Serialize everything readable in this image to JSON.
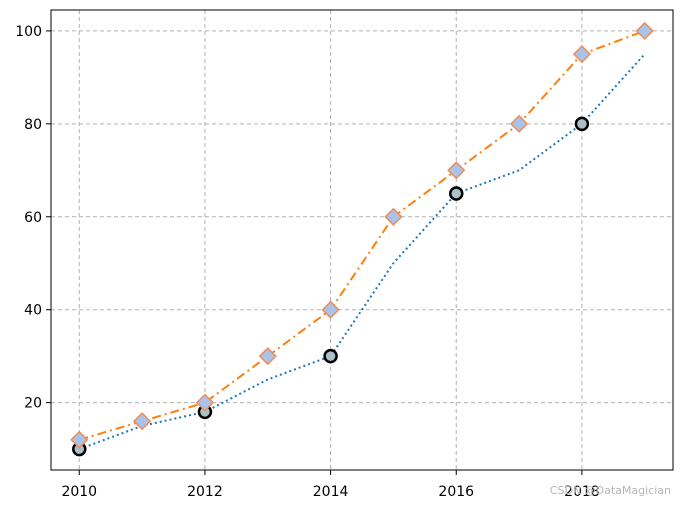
{
  "chart_data": {
    "type": "line",
    "x": [
      2010,
      2011,
      2012,
      2013,
      2014,
      2015,
      2016,
      2017,
      2018,
      2019
    ],
    "series": [
      {
        "values": [
          10,
          15,
          18,
          25,
          30,
          50,
          65,
          70,
          80,
          95
        ],
        "color": "#1f77b4",
        "line_style": "dotted",
        "marker": "circle",
        "marker_every": 2,
        "marker_face": "#a9c1c7",
        "marker_edge": "#000000"
      },
      {
        "values": [
          12,
          16,
          20,
          30,
          40,
          60,
          70,
          80,
          95,
          100
        ],
        "color": "#ff7f0e",
        "line_style": "dashdot",
        "marker": "diamond",
        "marker_every": 1,
        "marker_face": "#a9c4eb",
        "marker_edge": "#f08b54"
      }
    ],
    "xlim": [
      2009.55,
      2019.45
    ],
    "ylim": [
      5.5,
      104.5
    ],
    "xticks": [
      2010,
      2012,
      2014,
      2016,
      2018
    ],
    "yticks": [
      20,
      40,
      60,
      80,
      100
    ],
    "grid": true,
    "grid_style": "dashed",
    "grid_color": "#b0b0b0"
  },
  "watermark": "CSDN @DataMagician"
}
